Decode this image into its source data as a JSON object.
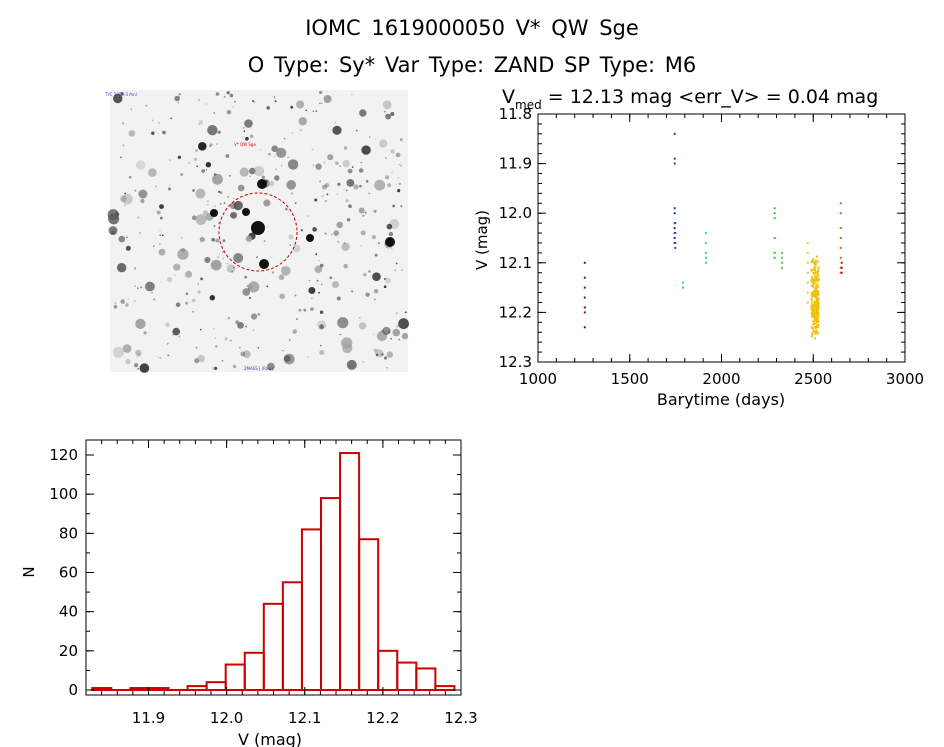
{
  "header": {
    "title_line1": "IOMC 1619000050   V* QW Sge",
    "title_line2": "O Type: Sy*  Var Type: ZAND  SP Type: M6"
  },
  "finder_chart": {
    "label_top_left": "TYC 1000-3 mnl",
    "label_target": "V* QW Sge",
    "label_bottom_center": "2MASS J (Raw)",
    "circle_color": "#cc0000"
  },
  "chart_data": [
    {
      "type": "scatter",
      "title_main": "V",
      "title_sub": "med",
      "title_rest": " = 12.13 mag <err_V> = 0.04 mag",
      "xlabel": "Barytime (days)",
      "ylabel": "V (mag)",
      "xlim": [
        1000,
        3000
      ],
      "ylim": [
        12.3,
        11.8
      ],
      "y_inverted": true,
      "x_ticks": [
        1000,
        1500,
        2000,
        2500,
        3000
      ],
      "y_ticks": [
        "11.8",
        "11.9",
        "12.0",
        "12.1",
        "12.2",
        "12.3"
      ],
      "groups": [
        {
          "x": 1255,
          "y": [
            12.1,
            12.13,
            12.15,
            12.17,
            12.19,
            12.2,
            12.23
          ],
          "color": "#6a0f40"
        },
        {
          "x": 1745,
          "y": [
            11.84,
            11.89,
            11.9,
            11.99,
            12.0,
            12.02,
            12.03,
            12.04,
            12.05,
            12.06
          ],
          "color": "#1f3a9e"
        },
        {
          "x": 1748,
          "y": [
            12.02,
            12.04,
            12.06,
            12.07
          ],
          "color": "#2255cc"
        },
        {
          "x": 1790,
          "y": [
            12.14,
            12.15
          ],
          "color": "#20d0d0"
        },
        {
          "x": 1915,
          "y": [
            12.04,
            12.06,
            12.08,
            12.09,
            12.1
          ],
          "color": "#30d890"
        },
        {
          "x": 2290,
          "y": [
            11.99,
            12.0,
            12.01,
            12.05,
            12.08,
            12.09
          ],
          "color": "#30c830"
        },
        {
          "x": 2330,
          "y": [
            12.08,
            12.09,
            12.1,
            12.11
          ],
          "color": "#60c830"
        },
        {
          "x": 2470,
          "y": [
            12.06,
            12.08,
            12.1,
            12.12,
            12.14,
            12.16,
            12.18
          ],
          "color": "#b8e030"
        },
        {
          "x": 2650,
          "y": [
            11.98,
            12.0,
            12.03,
            12.05,
            12.07,
            12.09,
            12.11,
            12.12
          ],
          "color": "#e06010"
        },
        {
          "x": 2655,
          "y": [
            12.1,
            12.11,
            12.12
          ],
          "color": "#cc1010"
        }
      ],
      "dense_band": {
        "x_start": 2490,
        "x_end": 2530,
        "y_top": 12.05,
        "y_bottom": 12.26,
        "color": "#f0c010"
      }
    },
    {
      "type": "bar",
      "subtype": "histogram",
      "xlabel": "V (mag)",
      "ylabel": "N",
      "xlim": [
        11.82,
        12.3
      ],
      "ylim": [
        0,
        125
      ],
      "x_ticks": [
        "11.9",
        "12.0",
        "12.1",
        "12.2",
        "12.3"
      ],
      "y_ticks": [
        "0",
        "20",
        "40",
        "60",
        "80",
        "100",
        "120"
      ],
      "bin_width": 0.0244,
      "bin_edges_start": 11.828,
      "counts": [
        1,
        0,
        1,
        1,
        0,
        2,
        4,
        13,
        19,
        44,
        55,
        82,
        98,
        121,
        77,
        20,
        14,
        11,
        2
      ],
      "color": "#cc0000"
    }
  ]
}
